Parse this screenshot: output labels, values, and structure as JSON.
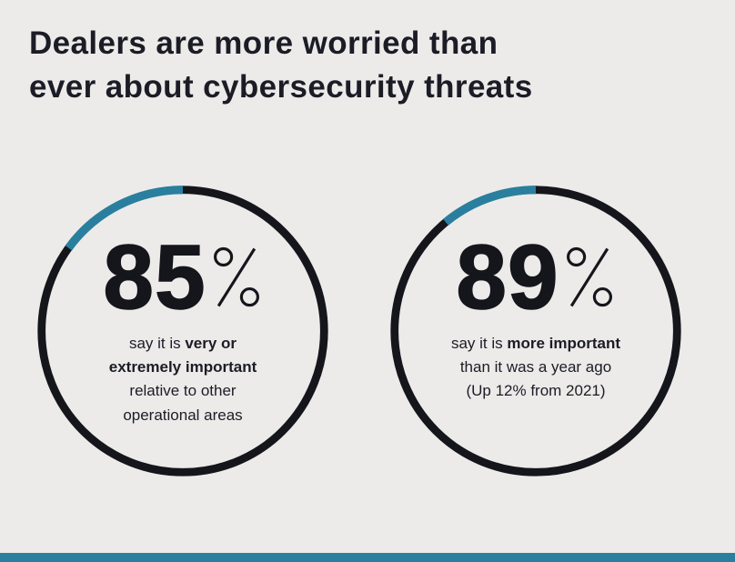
{
  "title": {
    "line1": "Dealers are more worried than",
    "line2": "ever about cybersecurity threats"
  },
  "colors": {
    "background": "#ecebe9",
    "text": "#1c1c26",
    "ring": "#15151c",
    "accent": "#2a7f9e"
  },
  "chart_data": {
    "type": "donut",
    "title": "Dealers are more worried than ever about cybersecurity threats",
    "legend": "none",
    "series": [
      {
        "name": "importance-relative-to-other-operational-areas",
        "value": 85,
        "display_value": "85",
        "unit": "%",
        "desc_pre": "say it is ",
        "desc_bold": "very or extremely important",
        "desc_post": " relative to other operational areas"
      },
      {
        "name": "more-important-than-a-year-ago",
        "value": 89,
        "display_value": "89",
        "unit": "%",
        "desc_pre": "say it is ",
        "desc_bold": "more important",
        "desc_post": " than it was a year ago (Up 12% from 2021)"
      }
    ]
  }
}
